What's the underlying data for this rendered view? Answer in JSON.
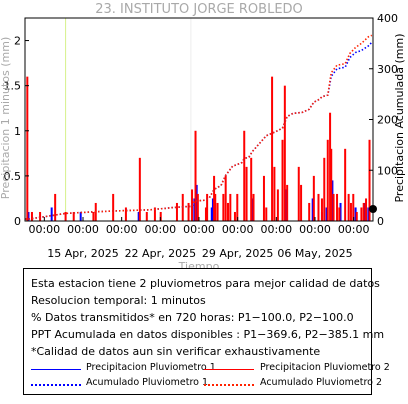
{
  "chart_data": {
    "type": "bar",
    "title": "23. INSTITUTO JORGE ROBLEDO",
    "xlabel": "Tiempo",
    "ylabel_left": "Precipitacion 1 minutos (mm)",
    "ylabel_right": "Precipitacion Acumulada (mm)",
    "x_tick_labels": [
      {
        "time": "00:00",
        "date": ""
      },
      {
        "time": "00:00",
        "date": "15 Apr, 2025"
      },
      {
        "time": "00:00",
        "date": ""
      },
      {
        "time": "00:00",
        "date": "22 Apr, 2025"
      },
      {
        "time": "00:00",
        "date": ""
      },
      {
        "time": "00:00",
        "date": "29 Apr, 2025"
      },
      {
        "time": "00:00",
        "date": ""
      },
      {
        "time": "00:00",
        "date": "06 May, 2025"
      },
      {
        "time": "00:00",
        "date": ""
      }
    ],
    "x_range_days": [
      0,
      30
    ],
    "ylim_left": [
      0,
      2.25
    ],
    "ylim_right": [
      0,
      400
    ],
    "yticks_left": [
      0,
      0.5,
      1,
      1.5,
      2
    ],
    "yticks_right": [
      0,
      100,
      200,
      300,
      400
    ],
    "series": [
      {
        "name": "Precipitacion Pluviometro 1",
        "kind": "bar",
        "color": "#0000ff",
        "points": [
          [
            0.3,
            0.1
          ],
          [
            2.3,
            0.15
          ],
          [
            4.8,
            0.1
          ],
          [
            9.8,
            0.1
          ],
          [
            14.6,
            0.25
          ],
          [
            14.8,
            0.4
          ],
          [
            16.1,
            0.15
          ],
          [
            16.2,
            0.25
          ],
          [
            19.6,
            0.25
          ],
          [
            22.5,
            0.35
          ],
          [
            24.8,
            0.25
          ],
          [
            25.6,
            0.1
          ],
          [
            26.0,
            0.15
          ],
          [
            26.5,
            0.45
          ],
          [
            27.2,
            0.2
          ],
          [
            28.5,
            0.15
          ],
          [
            29.3,
            0.2
          ],
          [
            29.6,
            0.15
          ]
        ]
      },
      {
        "name": "Precipitacion Pluviometro 2",
        "kind": "bar",
        "color": "#ff0000",
        "points": [
          [
            0.2,
            1.6
          ],
          [
            0.6,
            0.1
          ],
          [
            1.3,
            0.1
          ],
          [
            2.6,
            0.3
          ],
          [
            3.5,
            0.1
          ],
          [
            4.2,
            0.1
          ],
          [
            5.9,
            0.1
          ],
          [
            6.1,
            0.2
          ],
          [
            7.6,
            0.3
          ],
          [
            8.7,
            0.15
          ],
          [
            9.9,
            0.7
          ],
          [
            10.5,
            0.1
          ],
          [
            11.2,
            0.15
          ],
          [
            11.7,
            0.1
          ],
          [
            13.1,
            0.2
          ],
          [
            13.6,
            0.3
          ],
          [
            14.1,
            0.2
          ],
          [
            14.4,
            0.35
          ],
          [
            14.7,
            1.0
          ],
          [
            14.9,
            0.3
          ],
          [
            15.6,
            0.15
          ],
          [
            15.7,
            0.3
          ],
          [
            16.3,
            0.5
          ],
          [
            16.4,
            0.3
          ],
          [
            16.6,
            0.2
          ],
          [
            17.1,
            0.3
          ],
          [
            17.3,
            0.5
          ],
          [
            17.5,
            0.2
          ],
          [
            17.7,
            0.3
          ],
          [
            18.1,
            0.1
          ],
          [
            18.3,
            0.3
          ],
          [
            18.9,
            1.0
          ],
          [
            19.1,
            0.6
          ],
          [
            19.5,
            0.7
          ],
          [
            19.7,
            0.3
          ],
          [
            20.6,
            0.5
          ],
          [
            20.8,
            0.15
          ],
          [
            21.3,
            1.6
          ],
          [
            21.5,
            0.6
          ],
          [
            21.8,
            0.35
          ],
          [
            22.2,
            0.9
          ],
          [
            22.4,
            1.5
          ],
          [
            22.6,
            0.4
          ],
          [
            23.6,
            0.6
          ],
          [
            23.8,
            0.4
          ],
          [
            24.5,
            0.2
          ],
          [
            24.9,
            0.5
          ],
          [
            25.3,
            0.3
          ],
          [
            25.6,
            0.25
          ],
          [
            25.8,
            0.7
          ],
          [
            26.1,
            0.9
          ],
          [
            26.3,
            1.2
          ],
          [
            26.4,
            0.8
          ],
          [
            26.6,
            0.3
          ],
          [
            26.9,
            0.3
          ],
          [
            27.1,
            0.15
          ],
          [
            27.6,
            0.8
          ],
          [
            27.9,
            0.3
          ],
          [
            28.1,
            0.2
          ],
          [
            28.3,
            0.3
          ],
          [
            28.6,
            0.1
          ],
          [
            29.0,
            0.15
          ],
          [
            29.2,
            0.2
          ],
          [
            29.4,
            0.25
          ],
          [
            29.7,
            0.9
          ]
        ]
      },
      {
        "name": "Acumulado Pluviometro 1",
        "kind": "line",
        "color": "#0000ff",
        "points": [
          [
            0,
            4
          ],
          [
            0.4,
            4
          ],
          [
            3.5,
            15
          ],
          [
            5.8,
            18
          ],
          [
            8.1,
            20
          ],
          [
            10.8,
            22
          ],
          [
            13.0,
            27
          ],
          [
            14.4,
            29
          ],
          [
            14.6,
            39
          ],
          [
            15.5,
            41
          ],
          [
            15.9,
            46
          ],
          [
            16.3,
            62
          ],
          [
            16.9,
            70
          ],
          [
            17.3,
            90
          ],
          [
            17.9,
            108
          ],
          [
            18.7,
            115
          ],
          [
            18.9,
            123
          ],
          [
            19.3,
            126
          ],
          [
            19.6,
            137
          ],
          [
            20.1,
            150
          ],
          [
            20.8,
            168
          ],
          [
            21.6,
            176
          ],
          [
            22.2,
            183
          ],
          [
            22.6,
            206
          ],
          [
            23.1,
            212
          ],
          [
            23.9,
            214
          ],
          [
            24.5,
            220
          ],
          [
            24.9,
            234
          ],
          [
            25.4,
            240
          ],
          [
            25.6,
            245
          ],
          [
            26.1,
            248
          ],
          [
            26.4,
            285
          ],
          [
            26.9,
            300
          ],
          [
            27.6,
            303
          ],
          [
            28.0,
            322
          ],
          [
            28.5,
            332
          ],
          [
            29.0,
            336
          ],
          [
            29.6,
            345
          ],
          [
            29.9,
            352
          ]
        ]
      },
      {
        "name": "Acumulado Pluviometro 2",
        "kind": "line",
        "color": "#ff2200",
        "points": [
          [
            0,
            4
          ],
          [
            0.4,
            4
          ],
          [
            3.5,
            15
          ],
          [
            5.8,
            18
          ],
          [
            8.1,
            20
          ],
          [
            10.8,
            22
          ],
          [
            13.0,
            27
          ],
          [
            14.4,
            29
          ],
          [
            14.6,
            39
          ],
          [
            15.5,
            41
          ],
          [
            15.9,
            46
          ],
          [
            16.3,
            62
          ],
          [
            16.9,
            70
          ],
          [
            17.3,
            90
          ],
          [
            17.9,
            108
          ],
          [
            18.7,
            115
          ],
          [
            18.9,
            123
          ],
          [
            19.3,
            126
          ],
          [
            19.6,
            137
          ],
          [
            20.1,
            150
          ],
          [
            20.8,
            168
          ],
          [
            21.6,
            176
          ],
          [
            22.2,
            183
          ],
          [
            22.6,
            206
          ],
          [
            23.1,
            212
          ],
          [
            23.9,
            214
          ],
          [
            24.5,
            220
          ],
          [
            24.9,
            234
          ],
          [
            25.4,
            240
          ],
          [
            25.6,
            245
          ],
          [
            26.1,
            248
          ],
          [
            26.4,
            292
          ],
          [
            26.9,
            307
          ],
          [
            27.6,
            310
          ],
          [
            28.0,
            330
          ],
          [
            28.5,
            342
          ],
          [
            29.0,
            350
          ],
          [
            29.6,
            363
          ],
          [
            29.9,
            366
          ]
        ]
      }
    ],
    "grid": false,
    "legend_location": "bottom, in box below plot"
  },
  "info_box": {
    "lines": [
      "Esta estacion tiene 2 pluviometros para mejor calidad de datos",
      "Resolucion temporal: 1 minutos",
      "% Datos transmitidos* en 720 horas: P1−100.0, P2−100.0",
      "PPT Acumulada en datos disponibles : P1−369.6, P2−385.1 mm",
      "*Calidad de datos aun sin verificar exhaustivamente"
    ],
    "legend": [
      {
        "label": "Precipitacion Pluviometro 1",
        "color": "#0000ff",
        "style": "solid"
      },
      {
        "label": "Precipitacion Pluviometro 2",
        "color": "#ff0000",
        "style": "solid"
      },
      {
        "label": "Acumulado Pluviometro 1",
        "color": "#0000ff",
        "style": "dotted"
      },
      {
        "label": "Acumulado Pluviometro 2",
        "color": "#ff2200",
        "style": "dotted"
      }
    ]
  }
}
